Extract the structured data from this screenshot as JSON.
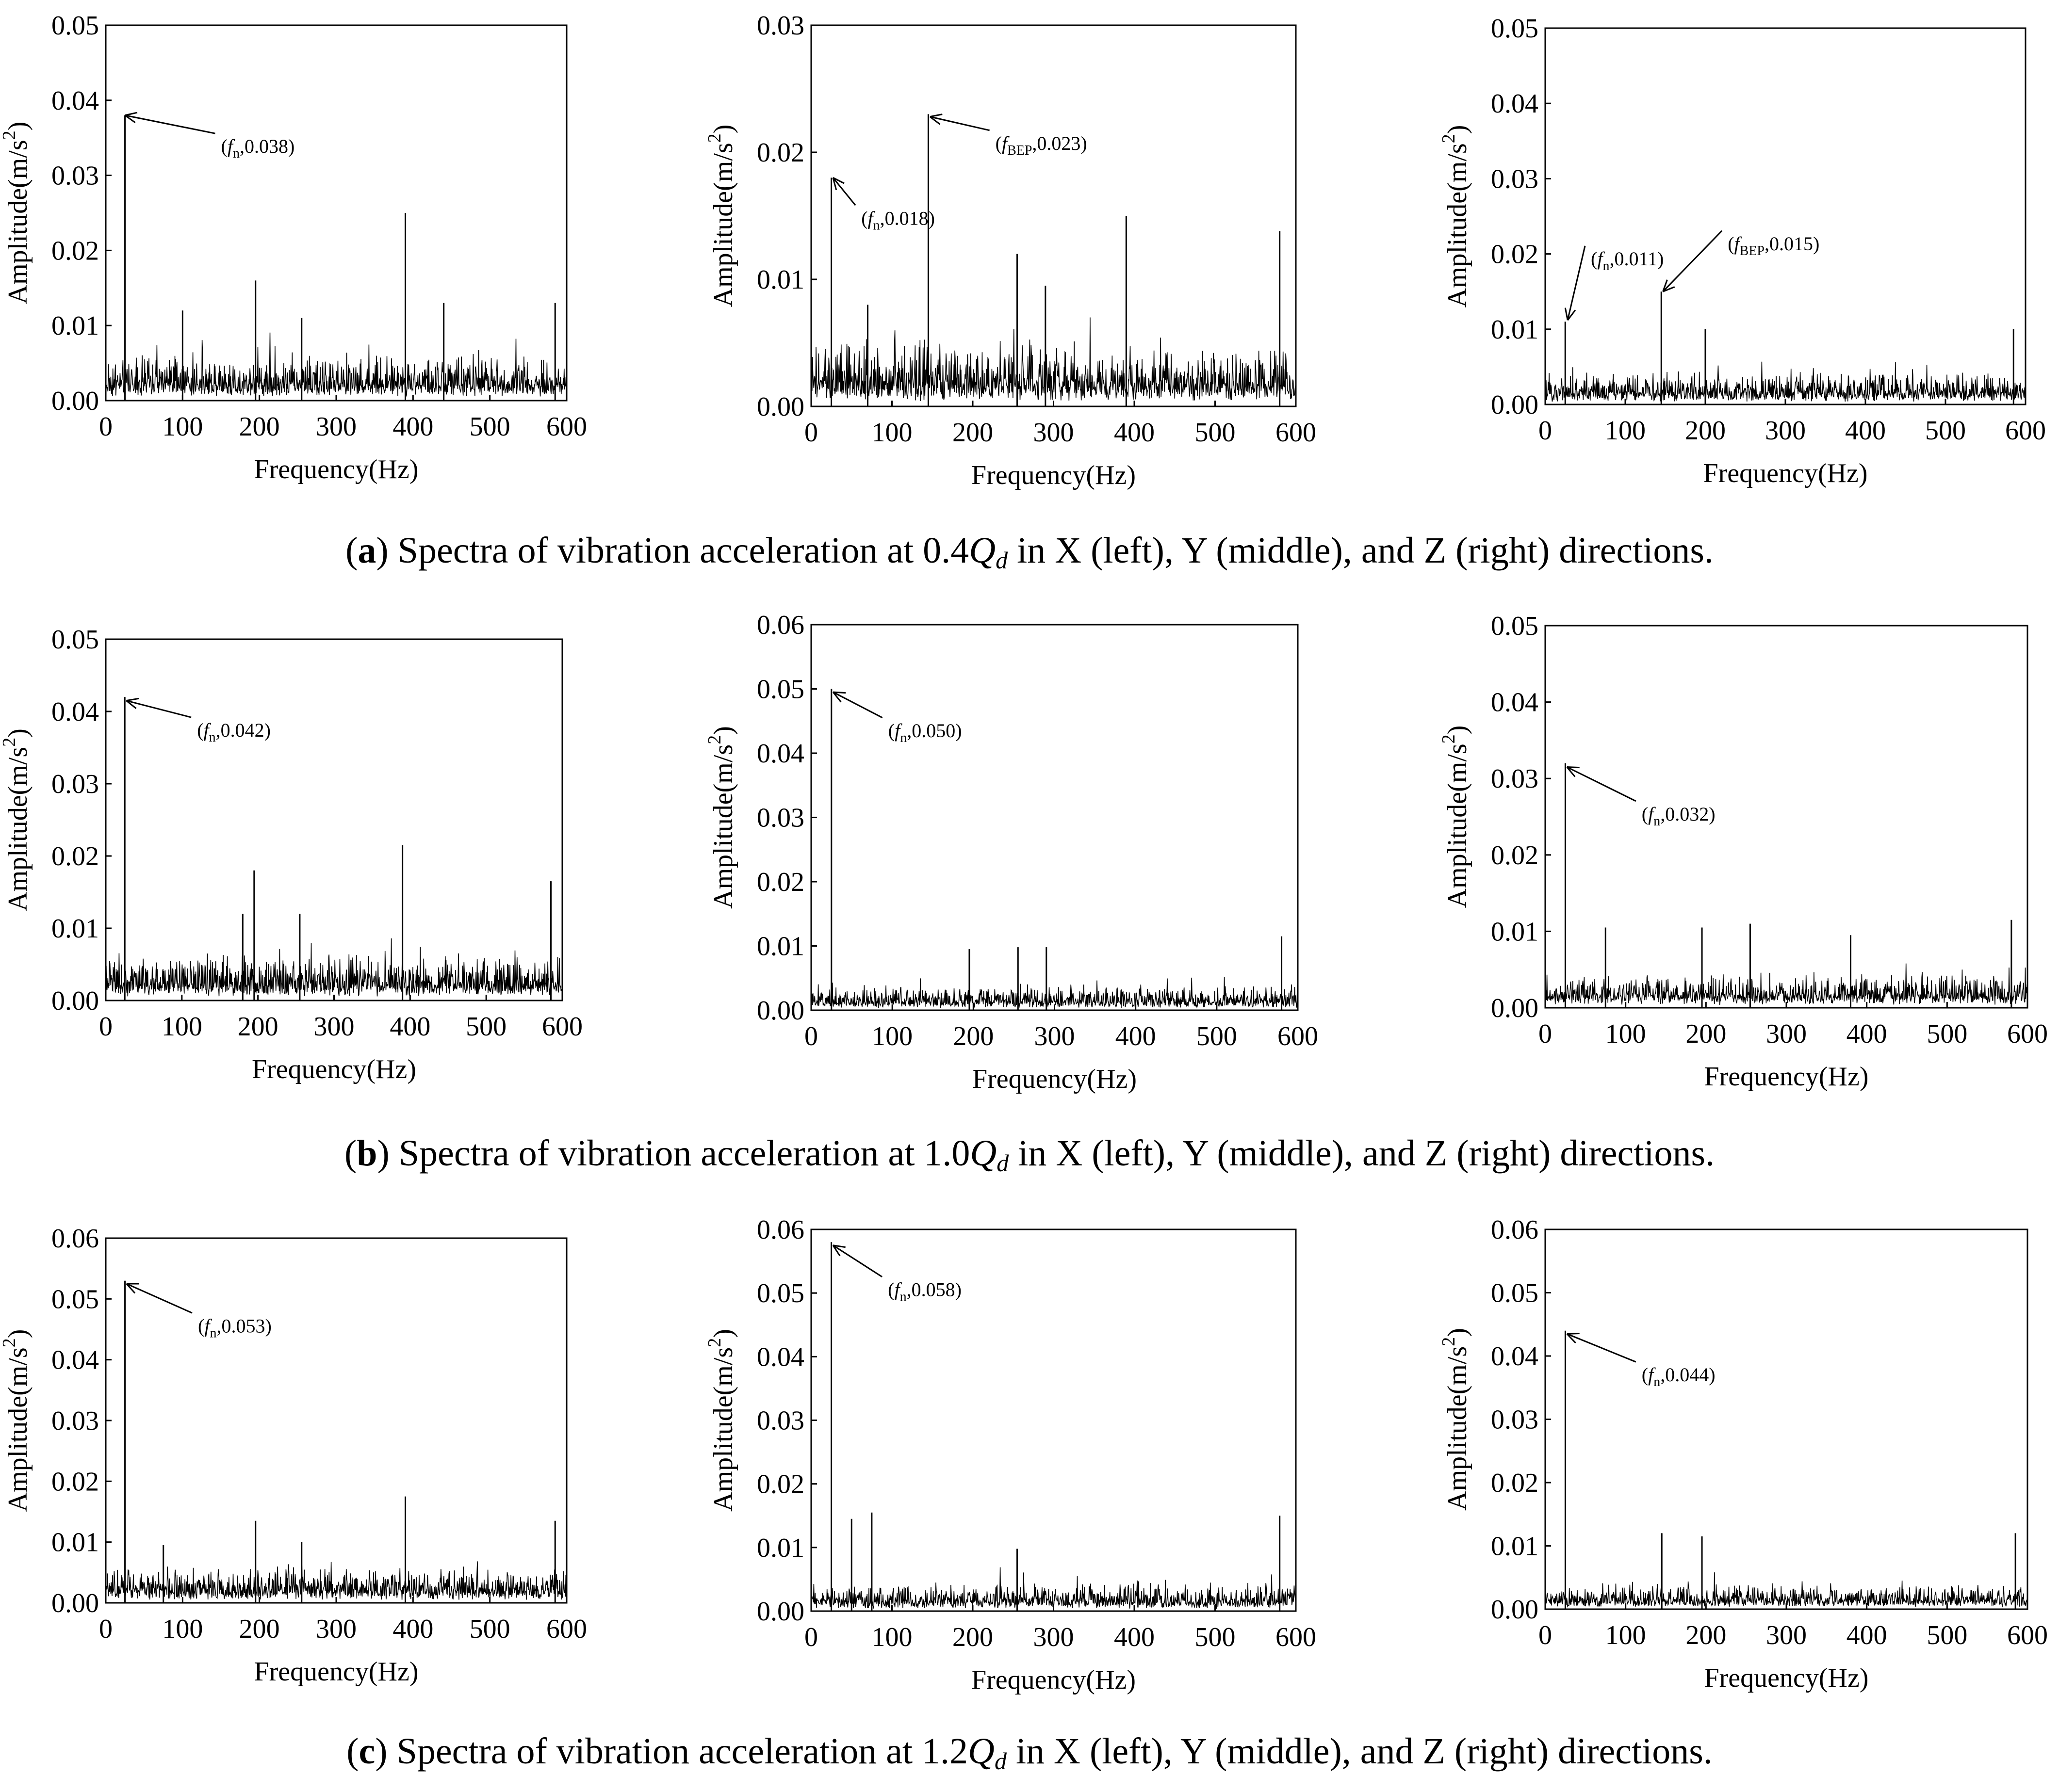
{
  "figure": {
    "captions": [
      {
        "letter": "a",
        "pre": "Spectra of vibration acceleration at 0.4",
        "q": "Q",
        "d": "d",
        "post": " in X (left), Y (middle), and Z (right) directions."
      },
      {
        "letter": "b",
        "pre": "Spectra of vibration acceleration at 1.0",
        "q": "Q",
        "d": "d",
        "post": " in X (left), Y (middle), and Z (right) directions."
      },
      {
        "letter": "c",
        "pre": "Spectra of vibration acceleration at 1.2",
        "q": "Q",
        "d": "d",
        "post": " in X (left), Y (middle), and Z (right) directions."
      }
    ]
  },
  "chart_data": [
    {
      "id": "a-x",
      "type": "line",
      "title": "",
      "xlabel": "Frequency(Hz)",
      "ylabel": "Amplitude(m/s2)",
      "xlim": [
        0,
        600
      ],
      "ylim": [
        0,
        0.05
      ],
      "xticks": [
        "0",
        "100",
        "200",
        "300",
        "400",
        "500",
        "600"
      ],
      "yticks": [
        "0.00",
        "0.01",
        "0.02",
        "0.03",
        "0.04",
        "0.05"
      ],
      "noise_level": 0.0035,
      "peaks": [
        [
          0,
          0.014
        ],
        [
          25,
          0.038
        ],
        [
          100,
          0.012
        ],
        [
          195,
          0.016
        ],
        [
          255,
          0.011
        ],
        [
          390,
          0.025
        ],
        [
          440,
          0.013
        ],
        [
          585,
          0.013
        ]
      ],
      "annotations": [
        {
          "sym": "f",
          "sub": "n",
          "value": "0.038",
          "peak_x": 25,
          "peak_y": 0.038,
          "text_x": 150,
          "text_y": 0.033
        }
      ]
    },
    {
      "id": "a-y",
      "type": "line",
      "title": "",
      "xlabel": "Frequency(Hz)",
      "ylabel": "Amplitude(m/s2)",
      "xlim": [
        0,
        600
      ],
      "ylim": [
        0,
        0.03
      ],
      "xticks": [
        "0",
        "100",
        "200",
        "300",
        "400",
        "500",
        "600"
      ],
      "yticks": [
        "0.00",
        "0.01",
        "0.02",
        "0.03"
      ],
      "noise_level": 0.0028,
      "peaks": [
        [
          0,
          0.008
        ],
        [
          25,
          0.018
        ],
        [
          70,
          0.008
        ],
        [
          145,
          0.023
        ],
        [
          255,
          0.012
        ],
        [
          290,
          0.0095
        ],
        [
          390,
          0.015
        ],
        [
          580,
          0.0138
        ]
      ],
      "annotations": [
        {
          "sym": "f",
          "sub": "n",
          "value": "0.018",
          "peak_x": 27,
          "peak_y": 0.018,
          "text_x": 62,
          "text_y": 0.0143
        },
        {
          "sym": "f",
          "sub": "BEP",
          "value": "0.023",
          "peak_x": 147,
          "peak_y": 0.0228,
          "text_x": 228,
          "text_y": 0.0202
        }
      ]
    },
    {
      "id": "a-z",
      "type": "line",
      "title": "",
      "xlabel": "Frequency(Hz)",
      "ylabel": "Amplitude(m/s2)",
      "xlim": [
        0,
        600
      ],
      "ylim": [
        0,
        0.05
      ],
      "xticks": [
        "0",
        "100",
        "200",
        "300",
        "400",
        "500",
        "600"
      ],
      "yticks": [
        "0.00",
        "0.01",
        "0.02",
        "0.03",
        "0.04",
        "0.05"
      ],
      "noise_level": 0.0025,
      "peaks": [
        [
          25,
          0.011
        ],
        [
          145,
          0.015
        ],
        [
          200,
          0.01
        ],
        [
          585,
          0.01
        ]
      ],
      "annotations": [
        {
          "sym": "f",
          "sub": "n",
          "value": "0.011",
          "peak_x": 28,
          "peak_y": 0.0112,
          "text_x": 57,
          "text_y": 0.0185
        },
        {
          "sym": "f",
          "sub": "BEP",
          "value": "0.015",
          "peak_x": 147,
          "peak_y": 0.015,
          "text_x": 228,
          "text_y": 0.0205
        }
      ]
    },
    {
      "id": "b-x",
      "type": "line",
      "title": "",
      "xlabel": "Frequency(Hz)",
      "ylabel": "Amplitude(m/s2)",
      "xlim": [
        0,
        600
      ],
      "ylim": [
        0,
        0.05
      ],
      "xticks": [
        "0",
        "100",
        "200",
        "300",
        "400",
        "500",
        "600"
      ],
      "yticks": [
        "0.00",
        "0.01",
        "0.02",
        "0.03",
        "0.04",
        "0.05"
      ],
      "noise_level": 0.0035,
      "peaks": [
        [
          0,
          0.015
        ],
        [
          25,
          0.042
        ],
        [
          180,
          0.012
        ],
        [
          195,
          0.018
        ],
        [
          255,
          0.012
        ],
        [
          390,
          0.0215
        ],
        [
          585,
          0.0165
        ]
      ],
      "annotations": [
        {
          "sym": "f",
          "sub": "n",
          "value": "0.042",
          "peak_x": 27,
          "peak_y": 0.0415,
          "text_x": 120,
          "text_y": 0.0365
        }
      ]
    },
    {
      "id": "b-y",
      "type": "line",
      "title": "",
      "xlabel": "Frequency(Hz)",
      "ylabel": "Amplitude(m/s2)",
      "xlim": [
        0,
        600
      ],
      "ylim": [
        0,
        0.06
      ],
      "xticks": [
        "0",
        "100",
        "200",
        "300",
        "400",
        "500",
        "600"
      ],
      "yticks": [
        "0.00",
        "0.01",
        "0.02",
        "0.03",
        "0.04",
        "0.05",
        "0.06"
      ],
      "noise_level": 0.0022,
      "peaks": [
        [
          0,
          0.012
        ],
        [
          25,
          0.05
        ],
        [
          195,
          0.0095
        ],
        [
          255,
          0.0098
        ],
        [
          290,
          0.0098
        ],
        [
          580,
          0.0115
        ]
      ],
      "annotations": [
        {
          "sym": "f",
          "sub": "n",
          "value": "0.050",
          "peak_x": 27,
          "peak_y": 0.0495,
          "text_x": 95,
          "text_y": 0.0425
        }
      ]
    },
    {
      "id": "b-z",
      "type": "line",
      "title": "",
      "xlabel": "Frequency(Hz)",
      "ylabel": "Amplitude(m/s2)",
      "xlim": [
        0,
        600
      ],
      "ylim": [
        0,
        0.05
      ],
      "xticks": [
        "0",
        "100",
        "200",
        "300",
        "400",
        "500",
        "600"
      ],
      "yticks": [
        "0.00",
        "0.01",
        "0.02",
        "0.03",
        "0.04",
        "0.05"
      ],
      "noise_level": 0.0025,
      "peaks": [
        [
          0,
          0.0095
        ],
        [
          25,
          0.032
        ],
        [
          75,
          0.0105
        ],
        [
          195,
          0.0105
        ],
        [
          255,
          0.011
        ],
        [
          380,
          0.0095
        ],
        [
          580,
          0.0115
        ]
      ],
      "annotations": [
        {
          "sym": "f",
          "sub": "n",
          "value": "0.032",
          "peak_x": 27,
          "peak_y": 0.0315,
          "text_x": 120,
          "text_y": 0.0245
        }
      ]
    },
    {
      "id": "c-x",
      "type": "line",
      "title": "",
      "xlabel": "Frequency(Hz)",
      "ylabel": "Amplitude(m/s2)",
      "xlim": [
        0,
        600
      ],
      "ylim": [
        0,
        0.06
      ],
      "xticks": [
        "0",
        "100",
        "200",
        "300",
        "400",
        "500",
        "600"
      ],
      "yticks": [
        "0.00",
        "0.01",
        "0.02",
        "0.03",
        "0.04",
        "0.05",
        "0.06"
      ],
      "noise_level": 0.0032,
      "peaks": [
        [
          0,
          0.018
        ],
        [
          25,
          0.053
        ],
        [
          75,
          0.0095
        ],
        [
          195,
          0.0135
        ],
        [
          255,
          0.01
        ],
        [
          390,
          0.0175
        ],
        [
          585,
          0.0135
        ]
      ],
      "annotations": [
        {
          "sym": "f",
          "sub": "n",
          "value": "0.053",
          "peak_x": 27,
          "peak_y": 0.0525,
          "text_x": 120,
          "text_y": 0.0445
        }
      ]
    },
    {
      "id": "c-y",
      "type": "line",
      "title": "",
      "xlabel": "Frequency(Hz)",
      "ylabel": "Amplitude(m/s2)",
      "xlim": [
        0,
        600
      ],
      "ylim": [
        0,
        0.06
      ],
      "xticks": [
        "0",
        "100",
        "200",
        "300",
        "400",
        "500",
        "600"
      ],
      "yticks": [
        "0.00",
        "0.01",
        "0.02",
        "0.03",
        "0.04",
        "0.05",
        "0.06"
      ],
      "noise_level": 0.0025,
      "peaks": [
        [
          0,
          0.013
        ],
        [
          25,
          0.058
        ],
        [
          50,
          0.0145
        ],
        [
          75,
          0.0155
        ],
        [
          255,
          0.0098
        ],
        [
          580,
          0.015
        ]
      ],
      "annotations": [
        {
          "sym": "f",
          "sub": "n",
          "value": "0.058",
          "peak_x": 27,
          "peak_y": 0.0575,
          "text_x": 95,
          "text_y": 0.0495
        }
      ]
    },
    {
      "id": "c-z",
      "type": "line",
      "title": "",
      "xlabel": "Frequency(Hz)",
      "ylabel": "Amplitude(m/s2)",
      "xlim": [
        0,
        600
      ],
      "ylim": [
        0,
        0.06
      ],
      "xticks": [
        "0",
        "100",
        "200",
        "300",
        "400",
        "500",
        "600"
      ],
      "yticks": [
        "0.00",
        "0.01",
        "0.02",
        "0.03",
        "0.04",
        "0.05",
        "0.06"
      ],
      "noise_level": 0.0022,
      "peaks": [
        [
          25,
          0.044
        ],
        [
          145,
          0.012
        ],
        [
          195,
          0.0115
        ],
        [
          585,
          0.012
        ]
      ],
      "annotations": [
        {
          "sym": "f",
          "sub": "n",
          "value": "0.044",
          "peak_x": 27,
          "peak_y": 0.0435,
          "text_x": 120,
          "text_y": 0.036
        }
      ]
    }
  ]
}
